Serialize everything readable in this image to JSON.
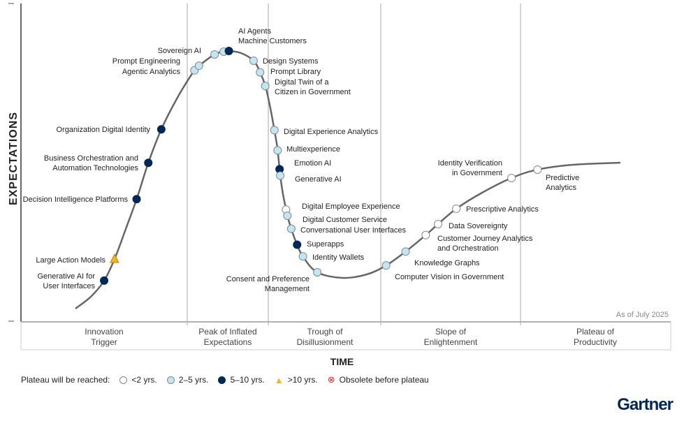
{
  "chart_data": {
    "type": "hype-cycle",
    "title": "",
    "xlabel": "TIME",
    "ylabel": "EXPECTATIONS",
    "as_of": "As of July 2025",
    "xlim": [
      0,
      100
    ],
    "phases": [
      "Innovation Trigger",
      "Peak of Inflated Expectations",
      "Trough of Disillusionment",
      "Slope of Enlightenment",
      "Plateau of Productivity"
    ],
    "categories": {
      "lt2": {
        "label": "<2 yrs.",
        "color": "#ffffff"
      },
      "2to5": {
        "label": "2–5 yrs.",
        "color": "#c5e6f0"
      },
      "5to10": {
        "label": "5–10 yrs.",
        "color": "#002856"
      },
      "gt10": {
        "label": ">10 yrs.",
        "color": "#f2b51d"
      },
      "obsolete": {
        "label": "Obsolete before plateau",
        "color": "#d62b2b"
      }
    },
    "items": [
      {
        "name": "Generative AI for User Interfaces",
        "time": 12.8,
        "cat": "5to10"
      },
      {
        "name": "Large Action Models",
        "time": 14.4,
        "cat": "gt10"
      },
      {
        "name": "Decision Intelligence Platforms",
        "time": 17.8,
        "cat": "5to10"
      },
      {
        "name": "Business Orchestration and Automation Technologies",
        "time": 19.6,
        "cat": "5to10"
      },
      {
        "name": "Organization Digital Identity",
        "time": 21.6,
        "cat": "5to10"
      },
      {
        "name": "Agentic Analytics",
        "time": 26.7,
        "cat": "2to5"
      },
      {
        "name": "Prompt Engineering",
        "time": 27.4,
        "cat": "2to5"
      },
      {
        "name": "Sovereign AI",
        "time": 29.8,
        "cat": "2to5"
      },
      {
        "name": "AI Agents",
        "time": 31.2,
        "cat": "2to5"
      },
      {
        "name": "Machine Customers",
        "time": 32.0,
        "cat": "5to10"
      },
      {
        "name": "Design Systems",
        "time": 35.8,
        "cat": "2to5"
      },
      {
        "name": "Prompt Library",
        "time": 36.8,
        "cat": "2to5"
      },
      {
        "name": "Digital Twin of a Citizen in Government",
        "time": 37.6,
        "cat": "2to5"
      },
      {
        "name": "Digital Experience Analytics",
        "time": 39.0,
        "cat": "2to5"
      },
      {
        "name": "Multiexperience",
        "time": 39.5,
        "cat": "2to5"
      },
      {
        "name": "Emotion AI",
        "time": 39.8,
        "cat": "5to10"
      },
      {
        "name": "Generative AI",
        "time": 39.9,
        "cat": "2to5"
      },
      {
        "name": "Digital Employee Experience",
        "time": 40.8,
        "cat": "lt2"
      },
      {
        "name": "Digital Customer Service",
        "time": 41.0,
        "cat": "2to5"
      },
      {
        "name": "Conversational User Interfaces",
        "time": 41.6,
        "cat": "2to5"
      },
      {
        "name": "Superapps",
        "time": 42.5,
        "cat": "5to10"
      },
      {
        "name": "Identity Wallets",
        "time": 43.4,
        "cat": "2to5"
      },
      {
        "name": "Consent and Preference Management",
        "time": 45.6,
        "cat": "2to5"
      },
      {
        "name": "Computer Vision in Government",
        "time": 56.2,
        "cat": "2to5"
      },
      {
        "name": "Knowledge Graphs",
        "time": 59.2,
        "cat": "2to5"
      },
      {
        "name": "Customer Journey Analytics and Orchestration",
        "time": 62.3,
        "cat": "lt2"
      },
      {
        "name": "Data Sovereignty",
        "time": 64.2,
        "cat": "lt2"
      },
      {
        "name": "Prescriptive Analytics",
        "time": 67.0,
        "cat": "lt2"
      },
      {
        "name": "Identity Verification in Government",
        "time": 75.5,
        "cat": "lt2"
      },
      {
        "name": "Predictive Analytics",
        "time": 79.5,
        "cat": "lt2"
      }
    ],
    "label_lines": [
      [
        "Generative AI for",
        "User Interfaces"
      ],
      [
        "Large Action Models"
      ],
      [
        "Decision Intelligence Platforms"
      ],
      [
        "Business Orchestration and",
        "Automation Technologies"
      ],
      [
        "Organization Digital Identity"
      ],
      [
        "Agentic Analytics"
      ],
      [
        "Prompt Engineering"
      ],
      [
        "Sovereign AI"
      ],
      [
        "AI Agents"
      ],
      [
        "Machine Customers"
      ],
      [
        "Design Systems"
      ],
      [
        "Prompt Library"
      ],
      [
        "Digital Twin of a",
        "Citizen in Government"
      ],
      [
        "Digital Experience Analytics"
      ],
      [
        "Multiexperience"
      ],
      [
        "Emotion AI"
      ],
      [
        "Generative AI"
      ],
      [
        "Digital Employee Experience"
      ],
      [
        "Digital Customer Service"
      ],
      [
        "Conversational User Interfaces"
      ],
      [
        "Superapps"
      ],
      [
        "Identity Wallets"
      ],
      [
        "Consent and Preference",
        "Management"
      ],
      [
        "Computer Vision in Government"
      ],
      [
        "Knowledge Graphs"
      ],
      [
        "Customer Journey Analytics",
        "and Orchestration"
      ],
      [
        "Data Sovereignty"
      ],
      [
        "Prescriptive Analytics"
      ],
      [
        "Identity Verification",
        "in Government"
      ],
      [
        "Predictive",
        "Analytics"
      ]
    ]
  },
  "legend": {
    "title": "Plateau will be reached:",
    "lt2": "<2 yrs.",
    "2to5": "2–5 yrs.",
    "5to10": "5–10 yrs.",
    "gt10": ">10 yrs.",
    "obsolete": "Obsolete before plateau"
  },
  "logo": "Gartner"
}
